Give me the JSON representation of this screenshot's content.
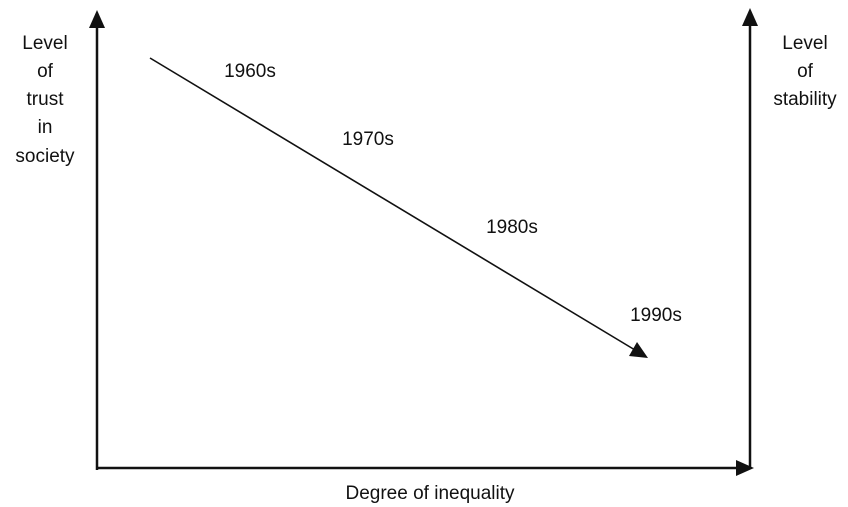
{
  "left_axis_label": [
    "Level",
    "of",
    "trust",
    "in",
    "society"
  ],
  "right_axis_label": [
    "Level",
    "of",
    "stability"
  ],
  "x_axis_label": "Degree of inequality",
  "trend_labels": [
    "1960s",
    "1970s",
    "1980s",
    "1990s"
  ]
}
